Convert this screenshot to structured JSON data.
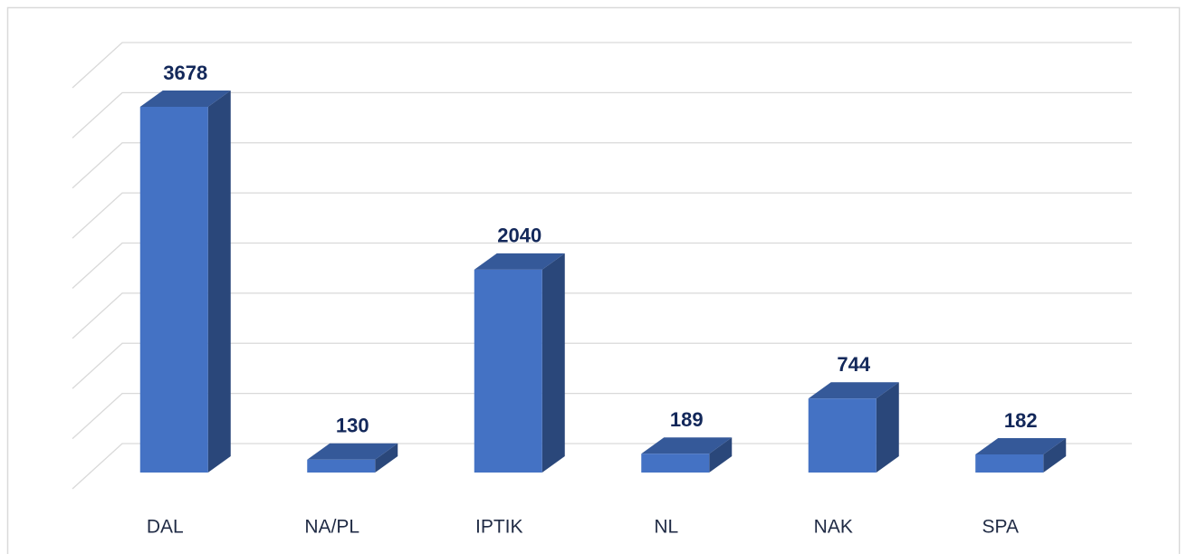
{
  "chart_data": {
    "type": "bar3d",
    "categories": [
      "DAL",
      "NA/PL",
      "IPTIK",
      "NL",
      "NAK",
      "SPA"
    ],
    "values": [
      3678,
      130,
      2040,
      189,
      744,
      182
    ],
    "color": "#4472c4",
    "ylim": [
      0,
      4000
    ],
    "yticks": [
      0,
      500,
      1000,
      1500,
      2000,
      2500,
      3000,
      3500,
      4000
    ],
    "grid": true
  }
}
